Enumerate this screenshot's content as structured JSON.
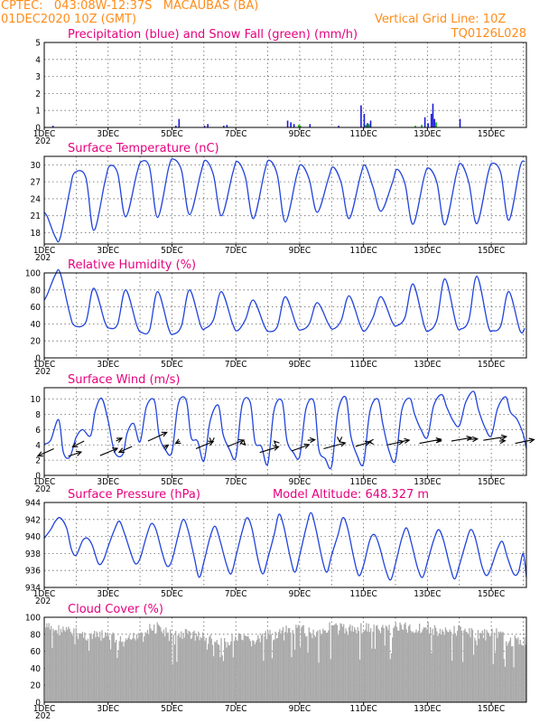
{
  "header": {
    "line1": "CPTEC:   043:08W-12:37S   MACAUBAS (BA)",
    "line2": "01DEC2020 10Z (GMT)",
    "grid_note": "Vertical Grid Line: 10Z",
    "model_code": "TQ0126L028"
  },
  "x_axis": {
    "labels": [
      "1DEC",
      "3DEC",
      "5DEC",
      "7DEC",
      "9DEC",
      "11DEC",
      "13DEC",
      "15DEC"
    ],
    "label_days": [
      0,
      2,
      4,
      6,
      8,
      10,
      12,
      14
    ],
    "range_days": [
      0,
      15.1
    ],
    "stub": "202"
  },
  "chart_data": [
    {
      "id": "precip",
      "type": "bar",
      "title": "Precipitation (blue) and Snow Fall (green) (mm/h)",
      "ylim": [
        0,
        5
      ],
      "yticks": [
        0,
        1,
        2,
        3,
        4,
        5
      ],
      "series": [
        {
          "name": "Precipitation",
          "color": "#1a1ad6",
          "x": [
            0.25,
            4.1,
            4.2,
            5.0,
            5.1,
            5.6,
            5.7,
            7.6,
            7.7,
            7.8,
            8.3,
            9.2,
            9.9,
            10.0,
            10.1,
            10.2,
            11.9,
            12.0,
            12.1,
            12.15,
            12.2,
            13.0
          ],
          "values": [
            0.1,
            0.1,
            0.5,
            0.1,
            0.2,
            0.1,
            0.15,
            0.4,
            0.3,
            0.2,
            0.2,
            0.1,
            1.3,
            0.8,
            0.25,
            0.4,
            0.6,
            0.25,
            0.8,
            1.4,
            0.5,
            0.5
          ]
        },
        {
          "name": "Snow Fall",
          "color": "#00aa00",
          "x": [
            7.95,
            8.0,
            10.05,
            10.15,
            11.6,
            11.8,
            12.25
          ],
          "values": [
            0.15,
            0.1,
            0.15,
            0.2,
            0.1,
            0.15,
            0.3
          ]
        }
      ]
    },
    {
      "id": "temperature",
      "type": "line",
      "title": "Surface Temperature (nC)",
      "ylim": [
        16,
        31.5
      ],
      "yticks": [
        18,
        21,
        24,
        27,
        30
      ],
      "series": [
        {
          "name": "Surface Temperature",
          "color": "#2244dd",
          "x": [
            0.0,
            0.1,
            0.35,
            0.5,
            0.8,
            0.95,
            1.3,
            1.55,
            1.9,
            2.05,
            2.3,
            2.55,
            2.9,
            3.05,
            3.3,
            3.55,
            3.9,
            4.05,
            4.3,
            4.55,
            4.9,
            5.05,
            5.3,
            5.55,
            5.9,
            6.05,
            6.3,
            6.55,
            6.9,
            7.05,
            7.3,
            7.55,
            7.9,
            8.05,
            8.3,
            8.55,
            8.9,
            9.05,
            9.3,
            9.55,
            9.9,
            10.05,
            10.3,
            10.55,
            10.9,
            11.05,
            11.3,
            11.55,
            11.9,
            12.05,
            12.3,
            12.55,
            12.9,
            13.05,
            13.3,
            13.55,
            13.9,
            14.05,
            14.3,
            14.55,
            14.9,
            15.05
          ],
          "values": [
            21.6,
            20.8,
            17.2,
            17.1,
            25.5,
            28.6,
            27.8,
            18.4,
            27.0,
            29.8,
            28.5,
            20.8,
            28.5,
            30.6,
            29.5,
            20.7,
            29.6,
            31.0,
            29.0,
            21.2,
            28.5,
            30.8,
            28.2,
            21.0,
            28.5,
            30.6,
            27.8,
            20.5,
            28.8,
            30.8,
            28.2,
            19.9,
            28.0,
            30.0,
            27.4,
            21.6,
            27.6,
            29.6,
            26.8,
            20.5,
            28.0,
            29.9,
            26.0,
            21.8,
            26.8,
            29.2,
            26.6,
            19.5,
            27.9,
            29.4,
            26.8,
            19.4,
            28.2,
            30.2,
            26.8,
            19.6,
            28.5,
            30.3,
            28.5,
            20.2,
            29.6,
            30.6
          ]
        }
      ]
    },
    {
      "id": "humidity",
      "type": "line",
      "title": "Relative Humidity (%)",
      "ylim": [
        0,
        100
      ],
      "yticks": [
        0,
        20,
        40,
        60,
        80,
        100
      ],
      "series": [
        {
          "name": "Relative Humidity",
          "color": "#2244dd",
          "x": [
            0.0,
            0.1,
            0.35,
            0.5,
            0.8,
            0.95,
            1.3,
            1.55,
            1.9,
            2.05,
            2.3,
            2.55,
            2.9,
            3.05,
            3.3,
            3.55,
            3.9,
            4.05,
            4.3,
            4.55,
            4.9,
            5.05,
            5.3,
            5.55,
            5.9,
            6.05,
            6.3,
            6.55,
            6.9,
            7.05,
            7.3,
            7.55,
            7.9,
            8.05,
            8.3,
            8.55,
            8.9,
            9.05,
            9.3,
            9.55,
            9.9,
            10.05,
            10.3,
            10.55,
            10.9,
            11.05,
            11.3,
            11.55,
            11.9,
            12.05,
            12.3,
            12.55,
            12.9,
            13.05,
            13.3,
            13.55,
            13.9,
            14.05,
            14.3,
            14.55,
            14.9,
            15.05
          ],
          "values": [
            68,
            75,
            98,
            100,
            52,
            38,
            42,
            82,
            42,
            35,
            40,
            80,
            38,
            30,
            33,
            78,
            34,
            28,
            38,
            80,
            38,
            35,
            45,
            78,
            40,
            32,
            45,
            68,
            37,
            31,
            37,
            72,
            38,
            33,
            40,
            65,
            40,
            34,
            44,
            73,
            38,
            32,
            48,
            72,
            42,
            38,
            48,
            87,
            38,
            32,
            45,
            93,
            40,
            34,
            45,
            96,
            38,
            32,
            38,
            78,
            32,
            35
          ]
        }
      ]
    },
    {
      "id": "wind",
      "type": "line",
      "title": "Surface Wind (m/s)",
      "ylim": [
        0,
        11.5
      ],
      "yticks": [
        0,
        2,
        4,
        6,
        8,
        10
      ],
      "series": [
        {
          "name": "Surface Wind",
          "color": "#2244dd",
          "x": [
            0.0,
            0.2,
            0.45,
            0.6,
            0.8,
            1.0,
            1.2,
            1.45,
            1.6,
            1.8,
            2.0,
            2.2,
            2.45,
            2.6,
            2.8,
            3.0,
            3.2,
            3.45,
            3.6,
            3.8,
            4.0,
            4.2,
            4.45,
            4.6,
            4.8,
            5.0,
            5.2,
            5.45,
            5.6,
            5.8,
            6.0,
            6.2,
            6.45,
            6.6,
            6.8,
            7.0,
            7.2,
            7.45,
            7.6,
            7.8,
            8.0,
            8.2,
            8.45,
            8.6,
            8.8,
            9.0,
            9.2,
            9.45,
            9.6,
            9.8,
            10.0,
            10.2,
            10.45,
            10.6,
            10.8,
            11.0,
            11.2,
            11.45,
            11.6,
            11.8,
            12.0,
            12.2,
            12.45,
            12.6,
            12.8,
            13.0,
            13.2,
            13.45,
            13.6,
            13.8,
            14.0,
            14.2,
            14.45,
            14.6,
            14.8,
            15.0,
            15.1
          ],
          "values": [
            4.1,
            4.6,
            7.3,
            3.0,
            2.4,
            5.0,
            6.0,
            5.2,
            8.5,
            10.1,
            7.2,
            3.1,
            2.7,
            5.6,
            6.8,
            4.4,
            9.0,
            9.8,
            5.2,
            3.3,
            3.1,
            9.4,
            9.8,
            5.0,
            4.5,
            1.9,
            7.2,
            9.2,
            5.4,
            3.4,
            2.4,
            9.3,
            9.6,
            4.4,
            3.8,
            1.5,
            8.6,
            9.7,
            4.6,
            3.0,
            2.5,
            8.8,
            9.6,
            3.4,
            2.2,
            1.2,
            8.4,
            10.2,
            5.2,
            2.6,
            1.6,
            8.4,
            10.0,
            6.8,
            3.2,
            2.0,
            8.6,
            10.1,
            8.0,
            6.0,
            5.0,
            9.2,
            10.6,
            9.0,
            7.2,
            6.5,
            9.6,
            11.0,
            8.6,
            6.3,
            5.2,
            8.8,
            10.3,
            8.3,
            7.4,
            5.4,
            3.5
          ]
        },
        {
          "name": "Wind Direction",
          "color": "#000000",
          "x": [
            0.3,
            0.75,
            1.25,
            1.75,
            2.25,
            2.75,
            3.25,
            3.75,
            4.25,
            4.75,
            5.25,
            5.75,
            6.25,
            6.75,
            7.25,
            7.75,
            8.25,
            8.75,
            9.25,
            9.75,
            10.25,
            10.75,
            11.25,
            11.75,
            12.25,
            12.75,
            13.25,
            13.75,
            14.25,
            14.75
          ],
          "y": [
            3.5,
            2.5,
            4.5,
            2.6,
            4.5,
            3.8,
            4.5,
            3.6,
            4.5,
            3.5,
            4.5,
            3.8,
            4.2,
            3.0,
            4.3,
            3.2,
            4.6,
            3.5,
            4.6,
            3.8,
            4.4,
            4.0,
            4.5,
            4.2,
            4.6,
            4.5,
            4.7,
            4.6,
            4.5,
            4.2
          ],
          "dx": [
            -5.5,
            4.5,
            -4.0,
            6.0,
            2.0,
            -4.5,
            6.5,
            1.5,
            -1.5,
            6.0,
            0.0,
            5.5,
            0.5,
            6.5,
            -0.5,
            6.0,
            2.5,
            7.5,
            0.0,
            5.0,
            -1.0,
            5.5,
            2.0,
            7.5,
            2.0,
            7.0,
            3.5,
            8.0,
            2.0,
            6.5
          ],
          "dy": [
            -2.5,
            1.5,
            -2.0,
            2.5,
            1.0,
            -2.0,
            3.0,
            1.0,
            -0.8,
            2.5,
            -0.5,
            2.2,
            -0.5,
            2.0,
            0.5,
            2.2,
            0.2,
            2.0,
            -0.5,
            1.5,
            0.0,
            1.2,
            0.3,
            1.4,
            -0.2,
            1.2,
            0.2,
            1.3,
            0.1,
            1.3
          ]
        }
      ]
    },
    {
      "id": "pressure",
      "type": "line",
      "title": "Surface Pressure (hPa)",
      "subtitle": "Model Altitude: 648.327 m",
      "ylim": [
        934,
        944
      ],
      "yticks": [
        934,
        936,
        938,
        940,
        942,
        944
      ],
      "series": [
        {
          "name": "Surface Pressure",
          "color": "#2244dd",
          "x": [
            0.0,
            0.2,
            0.35,
            0.5,
            0.7,
            0.85,
            1.0,
            1.2,
            1.35,
            1.5,
            1.7,
            1.85,
            2.0,
            2.2,
            2.35,
            2.5,
            2.7,
            2.85,
            3.0,
            3.2,
            3.35,
            3.5,
            3.7,
            3.85,
            4.0,
            4.2,
            4.35,
            4.5,
            4.7,
            4.85,
            5.0,
            5.2,
            5.35,
            5.5,
            5.7,
            5.85,
            6.0,
            6.2,
            6.35,
            6.5,
            6.7,
            6.85,
            7.0,
            7.2,
            7.35,
            7.5,
            7.7,
            7.85,
            8.0,
            8.2,
            8.35,
            8.5,
            8.7,
            8.85,
            9.0,
            9.2,
            9.35,
            9.5,
            9.7,
            9.85,
            10.0,
            10.2,
            10.35,
            10.5,
            10.7,
            10.85,
            11.0,
            11.2,
            11.35,
            11.5,
            11.7,
            11.85,
            12.0,
            12.2,
            12.35,
            12.5,
            12.7,
            12.85,
            13.0,
            13.2,
            13.35,
            13.5,
            13.7,
            13.85,
            14.0,
            14.2,
            14.35,
            14.5,
            14.7,
            14.85,
            15.0,
            15.1
          ],
          "values": [
            939.8,
            940.8,
            941.8,
            942.2,
            941.0,
            938.5,
            937.8,
            939.5,
            939.8,
            939.0,
            936.8,
            937.2,
            938.8,
            940.8,
            941.8,
            940.5,
            938.2,
            936.8,
            937.4,
            940.0,
            941.5,
            940.8,
            938.0,
            936.5,
            937.2,
            940.2,
            942.0,
            940.8,
            937.5,
            935.2,
            937.0,
            940.0,
            941.2,
            939.6,
            936.8,
            935.6,
            937.6,
            940.6,
            942.2,
            941.0,
            937.2,
            935.6,
            937.4,
            940.2,
            942.6,
            941.2,
            937.6,
            935.8,
            937.8,
            941.0,
            942.8,
            941.0,
            937.4,
            935.8,
            937.8,
            940.2,
            942.2,
            941.0,
            937.4,
            935.4,
            936.6,
            939.6,
            940.2,
            938.8,
            936.0,
            934.9,
            936.8,
            939.8,
            941.0,
            939.2,
            936.2,
            935.2,
            937.0,
            939.6,
            940.8,
            939.6,
            936.6,
            935.0,
            936.6,
            939.2,
            940.8,
            939.8,
            936.6,
            935.4,
            936.4,
            938.6,
            939.4,
            937.6,
            935.6,
            935.8,
            938.0,
            935.2
          ]
        }
      ]
    },
    {
      "id": "cloud",
      "type": "bar",
      "title": "Cloud Cover (%)",
      "ylim": [
        0,
        100
      ],
      "yticks": [
        0,
        20,
        40,
        60,
        80,
        100
      ],
      "series": [
        {
          "name": "Cloud Cover",
          "color": "#aaaaaa",
          "x": [
            0.0,
            0.5,
            1.0,
            1.5,
            2.0,
            2.5,
            3.0,
            3.5,
            4.0,
            4.5,
            5.0,
            5.5,
            6.0,
            6.5,
            7.0,
            7.5,
            8.0,
            8.5,
            9.0,
            9.5,
            10.0,
            10.5,
            11.0,
            11.5,
            12.0,
            12.5,
            13.0,
            13.5,
            14.0,
            14.5,
            15.0
          ],
          "values": [
            95,
            92,
            88,
            84,
            86,
            75,
            90,
            95,
            85,
            88,
            83,
            75,
            82,
            78,
            85,
            90,
            92,
            88,
            96,
            92,
            95,
            92,
            96,
            93,
            95,
            88,
            92,
            86,
            90,
            80,
            78
          ]
        }
      ]
    }
  ]
}
